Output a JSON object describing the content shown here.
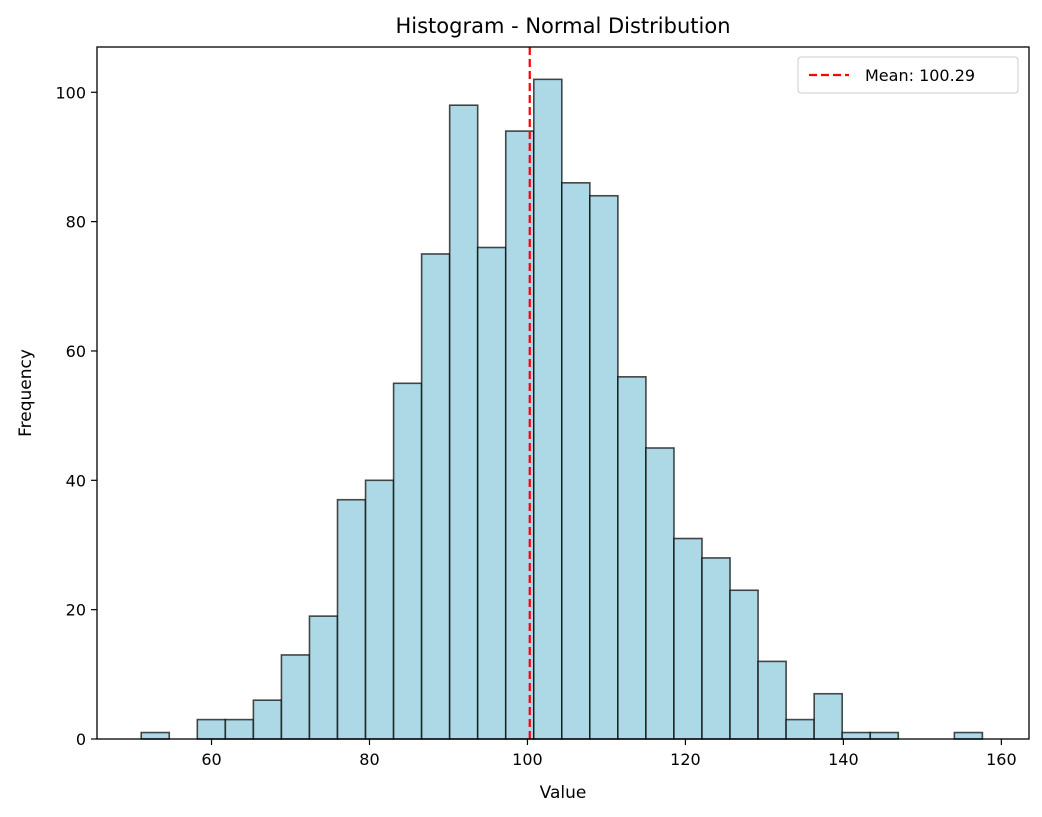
{
  "chart_data": {
    "type": "bar",
    "subtype": "histogram",
    "title": "Histogram - Normal Distribution",
    "xlabel": "Value",
    "ylabel": "Frequency",
    "xlim": [
      45.5,
      163.5
    ],
    "ylim": [
      0,
      107
    ],
    "xticks": [
      60,
      80,
      100,
      120,
      140,
      160
    ],
    "yticks": [
      0,
      20,
      40,
      60,
      80,
      100
    ],
    "bin_edges": [
      51.1,
      54.65,
      58.2,
      61.75,
      65.3,
      68.85,
      72.4,
      75.95,
      79.5,
      83.05,
      86.6,
      90.15,
      93.7,
      97.25,
      100.8,
      104.35,
      107.9,
      111.45,
      115.0,
      118.55,
      122.1,
      125.65,
      129.2,
      132.75,
      136.3,
      139.85,
      143.4,
      146.95,
      150.5,
      154.05,
      157.6
    ],
    "values": [
      1,
      0,
      3,
      3,
      6,
      13,
      19,
      37,
      40,
      55,
      75,
      98,
      76,
      94,
      102,
      86,
      84,
      56,
      45,
      31,
      28,
      23,
      12,
      3,
      7,
      1,
      1,
      0,
      0,
      1
    ],
    "bar_color": "#add8e6",
    "bar_edge_color": "#000000",
    "mean": 100.29,
    "mean_line_color": "#ff0000",
    "legend": {
      "placement": "top-right",
      "entries": [
        {
          "label": "Mean: 100.29",
          "color": "#ff0000",
          "style": "dashed"
        }
      ]
    },
    "grid": false
  }
}
